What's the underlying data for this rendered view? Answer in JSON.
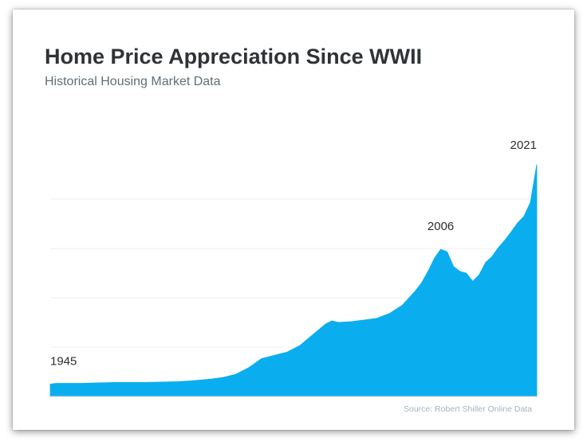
{
  "chart_data": {
    "type": "area",
    "title": "Home Price Appreciation Since WWII",
    "subtitle": "Historical Housing Market Data",
    "xlabel": "",
    "ylabel": "",
    "xlim": [
      1945,
      2021
    ],
    "ylim": [
      0,
      305
    ],
    "grid": true,
    "legend": "none",
    "color": "#0aaeee",
    "x": [
      1945,
      1946,
      1950,
      1955,
      1960,
      1965,
      1967,
      1970,
      1972,
      1974,
      1976,
      1978,
      1980,
      1982,
      1984,
      1986,
      1988,
      1989,
      1990,
      1992,
      1994,
      1996,
      1998,
      2000,
      2002,
      2003,
      2004,
      2005,
      2006,
      2007,
      2008,
      2009,
      2010,
      2011,
      2012,
      2013,
      2014,
      2015,
      2016,
      2017,
      2018,
      2019,
      2020,
      2021
    ],
    "values": [
      15,
      16,
      16,
      17,
      17,
      18,
      19,
      21,
      23,
      27,
      35,
      46,
      50,
      54,
      62,
      75,
      88,
      92,
      90,
      91,
      93,
      95,
      101,
      111,
      128,
      138,
      152,
      168,
      179,
      176,
      158,
      152,
      150,
      140,
      148,
      163,
      170,
      181,
      190,
      200,
      211,
      219,
      236,
      282
    ],
    "annotations": [
      {
        "x": 1945,
        "text": "1945"
      },
      {
        "x": 2006,
        "text": "2006"
      },
      {
        "x": 2021,
        "text": "2021"
      }
    ],
    "source": "Source: Robert Shiller Online Data"
  }
}
